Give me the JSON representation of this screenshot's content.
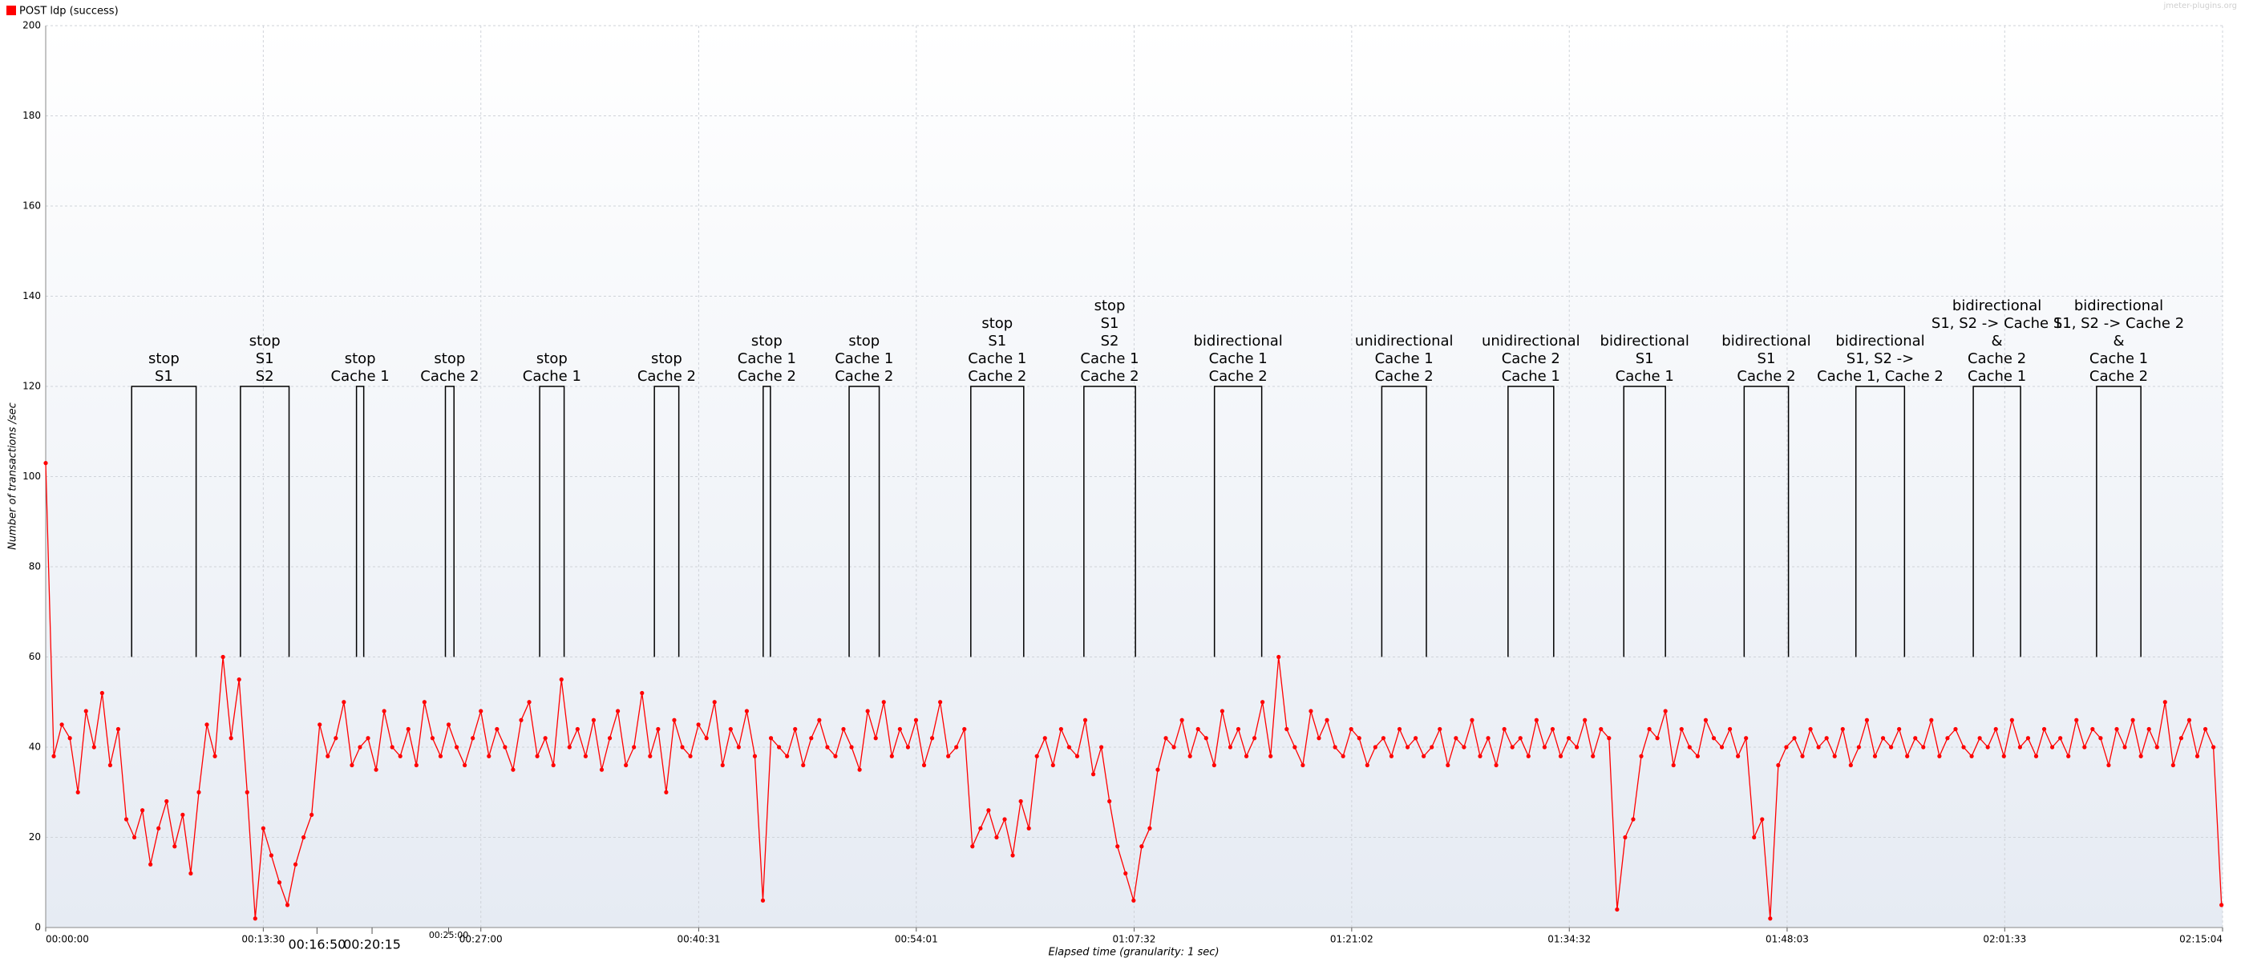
{
  "chart_data": {
    "type": "line",
    "legend": "POST ldp (success)",
    "watermark": "jmeter-plugins.org",
    "ylabel": "Number of transactions /sec",
    "xlabel": "Elapsed time (granularity: 1 sec)",
    "grid": true,
    "xlim": [
      0,
      8104
    ],
    "ylim": [
      0,
      200
    ],
    "yticks": [
      0,
      20,
      40,
      60,
      80,
      100,
      120,
      140,
      160,
      180,
      200
    ],
    "xticks": [
      {
        "value": 0,
        "label": "00:00:00"
      },
      {
        "value": 810,
        "label": "00:13:30"
      },
      {
        "value": 1620,
        "label": "00:27:00"
      },
      {
        "value": 2431,
        "label": "00:40:31"
      },
      {
        "value": 3241,
        "label": "00:54:01"
      },
      {
        "value": 4052,
        "label": "01:07:32"
      },
      {
        "value": 4862,
        "label": "01:21:02"
      },
      {
        "value": 5672,
        "label": "01:34:32"
      },
      {
        "value": 6483,
        "label": "01:48:03"
      },
      {
        "value": 7293,
        "label": "02:01:33"
      },
      {
        "value": 8104,
        "label": "02:15:04"
      }
    ],
    "time_marks": [
      {
        "value": 1010,
        "label": "00:16:50"
      },
      {
        "value": 1215,
        "label": "00:20:15"
      },
      {
        "value": 1500,
        "label": "00:25:00"
      }
    ],
    "annotation_y": [
      60,
      120
    ],
    "annotations": [
      {
        "lines": [
          "stop",
          "S1"
        ],
        "start": 320,
        "end": 560
      },
      {
        "lines": [
          "stop",
          "S1",
          "S2"
        ],
        "start": 725,
        "end": 906
      },
      {
        "lines": [
          "stop",
          "Cache 1"
        ],
        "start": 1157,
        "end": 1184
      },
      {
        "lines": [
          "stop",
          "Cache 2"
        ],
        "start": 1488,
        "end": 1520
      },
      {
        "lines": [
          "stop",
          "Cache 1"
        ],
        "start": 1839,
        "end": 1930
      },
      {
        "lines": [
          "stop",
          "Cache 2"
        ],
        "start": 2266,
        "end": 2357
      },
      {
        "lines": [
          "stop",
          "Cache 1",
          "Cache 2"
        ],
        "start": 2671,
        "end": 2698
      },
      {
        "lines": [
          "stop",
          "Cache 1",
          "Cache 2"
        ],
        "start": 2991,
        "end": 3103
      },
      {
        "lines": [
          "stop",
          "S1",
          "Cache 1",
          "Cache 2"
        ],
        "start": 3444,
        "end": 3641
      },
      {
        "lines": [
          "stop",
          "S1",
          "S2",
          "Cache 1",
          "Cache 2"
        ],
        "start": 3865,
        "end": 4057
      },
      {
        "lines": [
          "bidirectional",
          "Cache 1",
          "Cache 2"
        ],
        "start": 4351,
        "end": 4527
      },
      {
        "lines": [
          "unidirectional",
          "Cache 1",
          "Cache 2"
        ],
        "start": 4974,
        "end": 5140
      },
      {
        "lines": [
          "unidirectional",
          "Cache 2",
          "Cache 1"
        ],
        "start": 5444,
        "end": 5614
      },
      {
        "lines": [
          "bidirectional",
          "S1",
          "Cache 1"
        ],
        "start": 5875,
        "end": 6030
      },
      {
        "lines": [
          "bidirectional",
          "S1",
          "Cache 2"
        ],
        "start": 6323,
        "end": 6488
      },
      {
        "lines": [
          "bidirectional",
          "S1, S2 ->",
          "Cache 1, Cache 2"
        ],
        "start": 6739,
        "end": 6920
      },
      {
        "lines": [
          "bidirectional",
          "S1, S2 -> Cache 1",
          "&",
          "Cache 2",
          "Cache 1"
        ],
        "start": 7176,
        "end": 7352
      },
      {
        "lines": [
          "bidirectional",
          "S1, S2 -> Cache 2",
          "&",
          "Cache 1",
          "Cache 2"
        ],
        "start": 7635,
        "end": 7800
      }
    ],
    "series": [
      {
        "name": "POST ldp (success)",
        "color": "#ff0000",
        "x": [
          0,
          30,
          60,
          90,
          120,
          150,
          180,
          210,
          240,
          270,
          300,
          330,
          360,
          390,
          420,
          450,
          480,
          510,
          540,
          570,
          600,
          630,
          660,
          690,
          720,
          750,
          780,
          810,
          840,
          870,
          900,
          930,
          960,
          990,
          1020,
          1050,
          1080,
          1110,
          1140,
          1170,
          1200,
          1230,
          1260,
          1290,
          1320,
          1350,
          1380,
          1410,
          1440,
          1470,
          1500,
          1530,
          1560,
          1590,
          1620,
          1650,
          1680,
          1710,
          1740,
          1770,
          1800,
          1830,
          1860,
          1890,
          1920,
          1950,
          1980,
          2010,
          2040,
          2070,
          2100,
          2130,
          2160,
          2190,
          2220,
          2250,
          2280,
          2310,
          2340,
          2370,
          2400,
          2430,
          2460,
          2490,
          2520,
          2550,
          2580,
          2610,
          2640,
          2670,
          2700,
          2730,
          2760,
          2790,
          2820,
          2850,
          2880,
          2910,
          2940,
          2970,
          3000,
          3030,
          3060,
          3090,
          3120,
          3150,
          3180,
          3210,
          3240,
          3270,
          3300,
          3330,
          3360,
          3390,
          3420,
          3450,
          3480,
          3510,
          3540,
          3570,
          3600,
          3630,
          3660,
          3690,
          3720,
          3750,
          3780,
          3810,
          3840,
          3870,
          3900,
          3930,
          3960,
          3990,
          4020,
          4050,
          4080,
          4110,
          4140,
          4170,
          4200,
          4230,
          4260,
          4290,
          4320,
          4350,
          4380,
          4410,
          4440,
          4470,
          4500,
          4530,
          4560,
          4590,
          4620,
          4650,
          4680,
          4710,
          4740,
          4770,
          4800,
          4830,
          4860,
          4890,
          4920,
          4950,
          4980,
          5010,
          5040,
          5070,
          5100,
          5130,
          5160,
          5190,
          5220,
          5250,
          5280,
          5310,
          5340,
          5370,
          5400,
          5430,
          5460,
          5490,
          5520,
          5550,
          5580,
          5610,
          5640,
          5670,
          5700,
          5730,
          5760,
          5790,
          5820,
          5850,
          5880,
          5910,
          5940,
          5970,
          6000,
          6030,
          6060,
          6090,
          6120,
          6150,
          6180,
          6210,
          6240,
          6270,
          6300,
          6330,
          6360,
          6390,
          6420,
          6450,
          6480,
          6510,
          6540,
          6570,
          6600,
          6630,
          6660,
          6690,
          6720,
          6750,
          6780,
          6810,
          6840,
          6870,
          6900,
          6930,
          6960,
          6990,
          7020,
          7050,
          7080,
          7110,
          7140,
          7170,
          7200,
          7230,
          7260,
          7290,
          7320,
          7350,
          7380,
          7410,
          7440,
          7470,
          7500,
          7530,
          7560,
          7590,
          7620,
          7650,
          7680,
          7710,
          7740,
          7770,
          7800,
          7830,
          7860,
          7890,
          7920,
          7950,
          7980,
          8010,
          8040,
          8070,
          8100
        ],
        "values": [
          103,
          38,
          45,
          42,
          30,
          48,
          40,
          52,
          36,
          44,
          24,
          20,
          26,
          14,
          22,
          28,
          18,
          25,
          12,
          30,
          45,
          38,
          60,
          42,
          55,
          30,
          2,
          22,
          16,
          10,
          5,
          14,
          20,
          25,
          45,
          38,
          42,
          50,
          36,
          40,
          42,
          35,
          48,
          40,
          38,
          44,
          36,
          50,
          42,
          38,
          45,
          40,
          36,
          42,
          48,
          38,
          44,
          40,
          35,
          46,
          50,
          38,
          42,
          36,
          55,
          40,
          44,
          38,
          46,
          35,
          42,
          48,
          36,
          40,
          52,
          38,
          44,
          30,
          46,
          40,
          38,
          45,
          42,
          50,
          36,
          44,
          40,
          48,
          38,
          6,
          42,
          40,
          38,
          44,
          36,
          42,
          46,
          40,
          38,
          44,
          40,
          35,
          48,
          42,
          50,
          38,
          44,
          40,
          46,
          36,
          42,
          50,
          38,
          40,
          44,
          18,
          22,
          26,
          20,
          24,
          16,
          28,
          22,
          38,
          42,
          36,
          44,
          40,
          38,
          46,
          34,
          40,
          28,
          18,
          12,
          6,
          18,
          22,
          35,
          42,
          40,
          46,
          38,
          44,
          42,
          36,
          48,
          40,
          44,
          38,
          42,
          50,
          38,
          60,
          44,
          40,
          36,
          48,
          42,
          46,
          40,
          38,
          44,
          42,
          36,
          40,
          42,
          38,
          44,
          40,
          42,
          38,
          40,
          44,
          36,
          42,
          40,
          46,
          38,
          42,
          36,
          44,
          40,
          42,
          38,
          46,
          40,
          44,
          38,
          42,
          40,
          46,
          38,
          44,
          42,
          4,
          20,
          24,
          38,
          44,
          42,
          48,
          36,
          44,
          40,
          38,
          46,
          42,
          40,
          44,
          38,
          42,
          20,
          24,
          2,
          36,
          40,
          42,
          38,
          44,
          40,
          42,
          38,
          44,
          36,
          40,
          46,
          38,
          42,
          40,
          44,
          38,
          42,
          40,
          46,
          38,
          42,
          44,
          40,
          38,
          42,
          40,
          44,
          38,
          46,
          40,
          42,
          38,
          44,
          40,
          42,
          38,
          46,
          40,
          44,
          42,
          36,
          44,
          40,
          46,
          38,
          44,
          40,
          50,
          36,
          42,
          46,
          38,
          44,
          40,
          5
        ]
      }
    ]
  }
}
